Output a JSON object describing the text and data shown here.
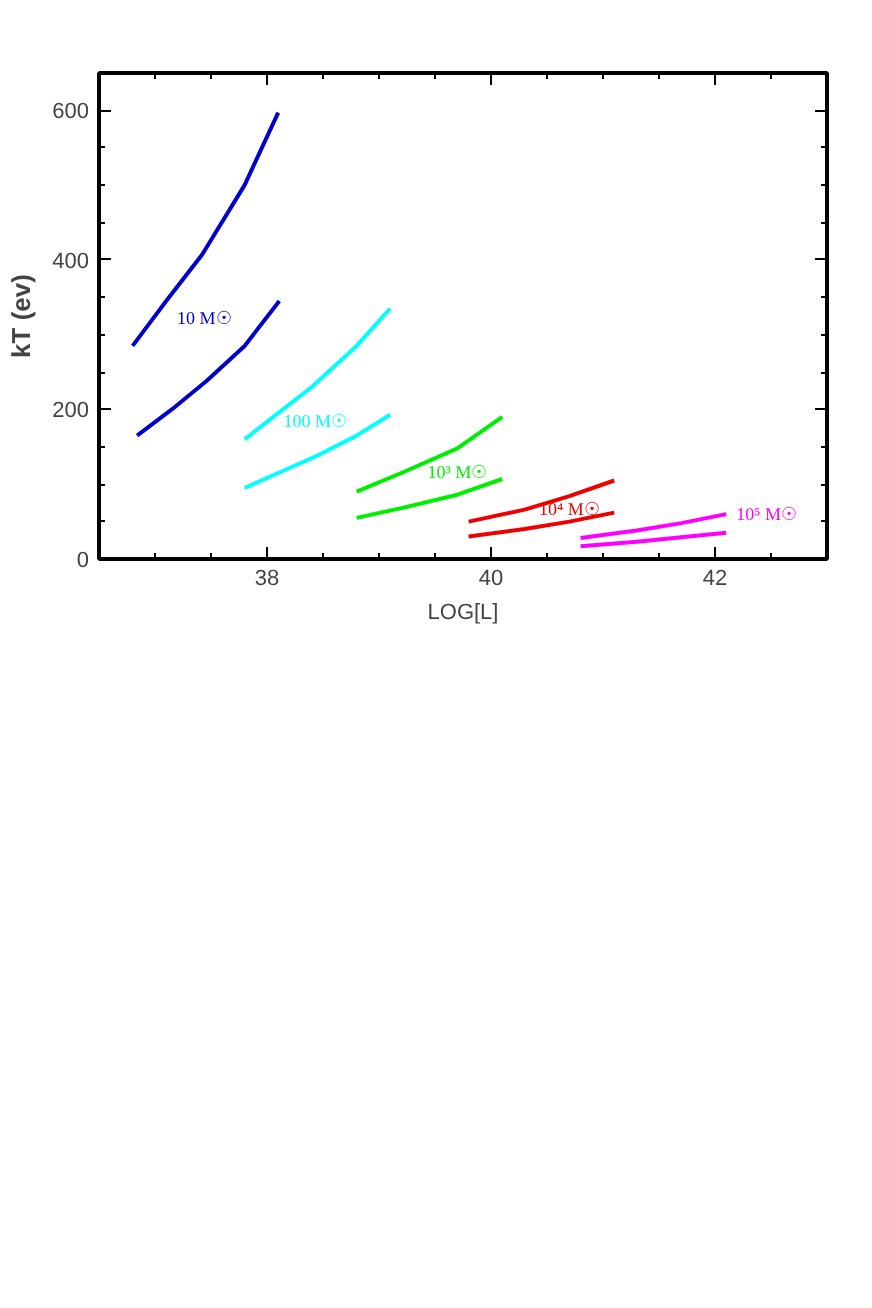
{
  "chart_data": {
    "type": "line",
    "xlabel": "LOG[L]",
    "ylabel": "kT (ev)",
    "xlim": [
      36.5,
      43.0
    ],
    "ylim": [
      0,
      650
    ],
    "xticks": [
      38,
      40,
      42
    ],
    "yticks": [
      0,
      200,
      400,
      600
    ],
    "grid": false,
    "marker": "none",
    "line_style": "solid",
    "series": [
      {
        "name": "10 M☉",
        "color": "#0000cc",
        "x": [
          36.8,
          37.1,
          37.42,
          37.8,
          38.1
        ],
        "values": [
          285,
          345,
          407,
          500,
          597
        ]
      },
      {
        "color": "#0000cc",
        "x": [
          36.84,
          37.15,
          37.46,
          37.8,
          38.11
        ],
        "values": [
          165,
          200,
          238,
          285,
          345
        ]
      },
      {
        "name": "100 M☉",
        "color": "#00ffff",
        "x": [
          37.8,
          38.1,
          38.4,
          38.8,
          39.1
        ],
        "values": [
          160,
          195,
          230,
          285,
          335
        ]
      },
      {
        "color": "#00ffff",
        "x": [
          37.8,
          38.1,
          38.46,
          38.8,
          39.1
        ],
        "values": [
          95,
          115,
          139,
          165,
          193
        ]
      },
      {
        "name": "10³ M☉",
        "color": "#00ee00",
        "x": [
          38.8,
          39.2,
          39.7,
          40.1
        ],
        "values": [
          90,
          115,
          148,
          190
        ]
      },
      {
        "color": "#00ee00",
        "x": [
          38.8,
          39.2,
          39.7,
          40.1
        ],
        "values": [
          55,
          68,
          86,
          107
        ]
      },
      {
        "name": "10⁴ M☉",
        "color": "#ee0000",
        "x": [
          39.8,
          40.3,
          40.7,
          41.1
        ],
        "values": [
          50,
          66,
          84,
          105
        ]
      },
      {
        "color": "#ee0000",
        "x": [
          39.8,
          40.3,
          40.7,
          41.1
        ],
        "values": [
          30,
          40,
          50,
          62
        ]
      },
      {
        "name": "10⁵ M☉",
        "color": "#ff00ff",
        "x": [
          40.8,
          41.3,
          41.7,
          42.1
        ],
        "values": [
          28,
          38,
          48,
          60
        ]
      },
      {
        "color": "#ff00ff",
        "x": [
          40.8,
          41.3,
          41.7,
          42.1
        ],
        "values": [
          17,
          23,
          29,
          35
        ]
      }
    ]
  }
}
